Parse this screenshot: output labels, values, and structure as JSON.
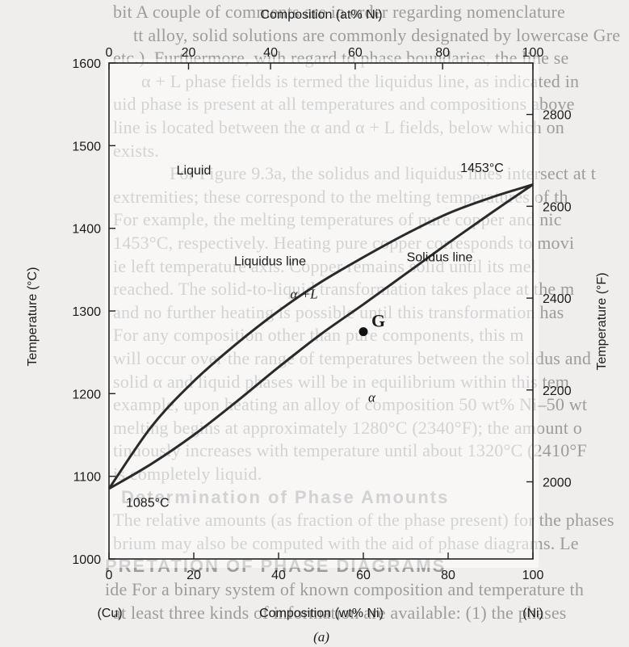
{
  "background_text": [
    "bit A couple of comments are in order regarding nomenclature",
    "tt alloy, solid solutions are commonly designated by lowercase Gre",
    "etc.). Furthermore, with regard to phase boundaries, the line se",
    "α + L phase fields is termed the liquidus line, as indicated in",
    "uid phase is present at all temperatures and compositions above",
    "line is located between the α and α + L fields, below which on",
    "exists.",
    "For Figure 9.3a, the solidus and liquidus lines intersect at t",
    "extremities; these correspond to the melting temperatures of th",
    "For example, the melting temperatures of pure copper and nic",
    "1453°C, respectively. Heating pure copper corresponds to movi",
    "ie left temperature axis. Copper remains solid until its mel",
    "reached. The solid-to-liquid transformation takes place at the m",
    "and no further heating is possible until this transformation has",
    "For any composition other than pure components, this m",
    "will occur over the range of temperatures between the solidus and",
    "solid α and liquid phases will be in equilibrium within this tem",
    "example, upon heating an alloy of composition 50 wt% Ni–50 wt",
    "melting begins at approximately 1280°C (2340°F); the amount o",
    "tinuously increases with temperature until about 1320°C (2410°F",
    "is completely liquid.",
    "Determination of Phase Amounts",
    "The relative amounts (as fraction of the phase present) for the phases",
    "brium may also be computed with the aid of phase diagrams. Le",
    "PRETATION OF PHASE DIAGRAMS",
    "ide For a binary system of known composition and temperature th",
    "at least three kinds of information are available: (1) the phases"
  ],
  "chart_data": {
    "type": "line",
    "title": "Composition (at% Ni)",
    "top_axis": {
      "label": "Composition (at% Ni)",
      "ticks": [
        0,
        20,
        40,
        60,
        80,
        100
      ]
    },
    "xlabel": "Composition (wt% Ni)",
    "xlim": [
      0,
      100
    ],
    "x_ticks": [
      0,
      20,
      40,
      60,
      80,
      100
    ],
    "x_end_labels": [
      "(Cu)",
      "(Ni)"
    ],
    "ylabel": "Temperature (°C)",
    "ylim": [
      1000,
      1600
    ],
    "y_ticks": [
      1000,
      1100,
      1200,
      1300,
      1400,
      1500,
      1600
    ],
    "right_axis": {
      "label": "Temperature (°F)",
      "ticks": [
        2000,
        2200,
        2400,
        2600,
        2800
      ]
    },
    "grid": false,
    "series": [
      {
        "name": "Liquidus line",
        "x": [
          0,
          10,
          20,
          30,
          40,
          50,
          60,
          70,
          80,
          90,
          100
        ],
        "y": [
          1085,
          1160,
          1215,
          1260,
          1300,
          1335,
          1365,
          1393,
          1418,
          1437,
          1453
        ]
      },
      {
        "name": "Solidus line",
        "x": [
          0,
          10,
          20,
          30,
          40,
          50,
          60,
          70,
          80,
          90,
          100
        ],
        "y": [
          1085,
          1115,
          1150,
          1190,
          1232,
          1272,
          1308,
          1345,
          1382,
          1418,
          1453
        ]
      }
    ],
    "points": [
      {
        "label": "G",
        "x": 60,
        "y": 1275
      }
    ],
    "annotations": [
      {
        "text": "1085°C",
        "x": 4,
        "y": 1063
      },
      {
        "text": "1453°C",
        "x": 88,
        "y": 1468
      }
    ],
    "regions": [
      {
        "text": "Liquid",
        "x": 20,
        "y": 1465
      },
      {
        "text": "α +L",
        "x": 46,
        "y": 1315
      },
      {
        "text": "α",
        "x": 62,
        "y": 1190
      },
      {
        "text": "Liquidus line",
        "x": 38,
        "y": 1355
      },
      {
        "text": "Solidus line",
        "x": 78,
        "y": 1360
      }
    ],
    "caption": "(a)"
  }
}
